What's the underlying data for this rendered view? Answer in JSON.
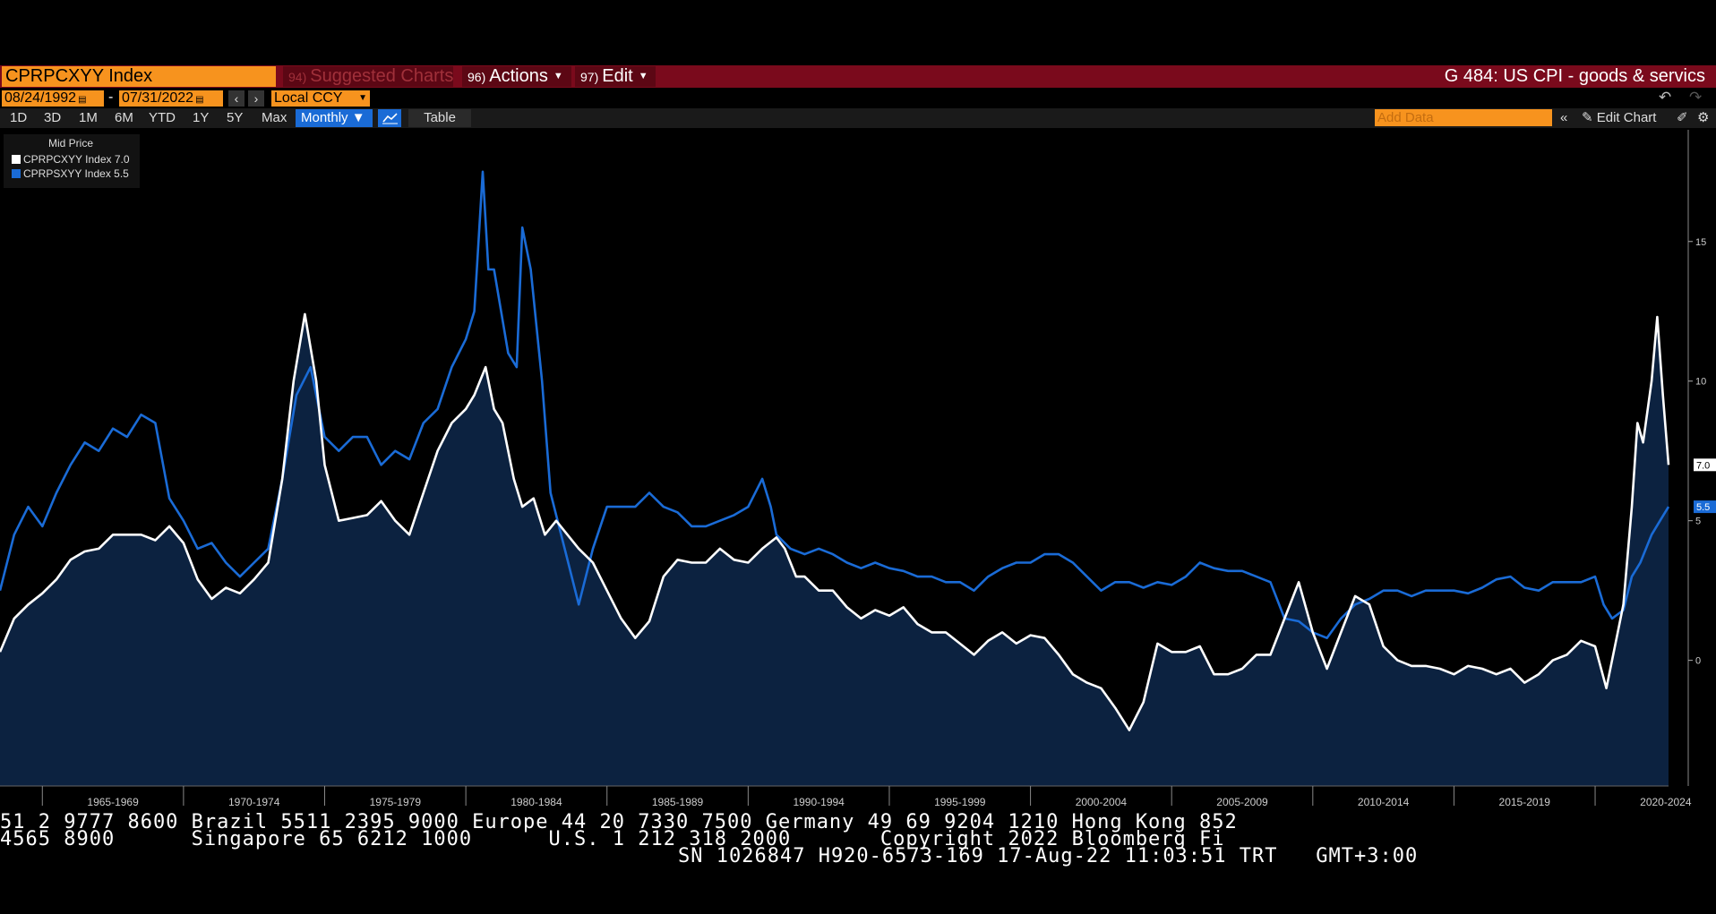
{
  "header": {
    "ticker": "CPRPCXYY Index",
    "suggested_num": "94)",
    "suggested_label": "Suggested Charts",
    "actions_num": "96)",
    "actions_label": "Actions",
    "edit_num": "97)",
    "edit_label": "Edit",
    "chart_name": "G 484: US CPI - goods & servics"
  },
  "dates": {
    "start": "08/24/1992",
    "end": "07/31/2022",
    "currency": "Local CCY"
  },
  "periods": [
    "1D",
    "3D",
    "1M",
    "6M",
    "YTD",
    "1Y",
    "5Y",
    "Max"
  ],
  "frequency": "Monthly",
  "table_label": "Table",
  "add_data_placeholder": "Add Data",
  "edit_chart_label": "Edit Chart",
  "legend": {
    "title": "Mid Price",
    "items": [
      {
        "label": "CPRPCXYY Index 7.0",
        "color": "#ffffff"
      },
      {
        "label": "CPRPSXYY Index 5.5",
        "color": "#1a6bd6"
      }
    ]
  },
  "chart_data": {
    "type": "line",
    "title": "",
    "ylim": [
      -4.5,
      19
    ],
    "yticks": [
      0,
      5,
      10,
      15
    ],
    "xticks": [
      "1965-1969",
      "1970-1974",
      "1975-1979",
      "1980-1984",
      "1985-1989",
      "1990-1994",
      "1995-1999",
      "2000-2004",
      "2005-2009",
      "2010-2014",
      "2015-2019",
      "2020-2024"
    ],
    "x_range": [
      1963.5,
      2022.6
    ],
    "grid": false,
    "legend_position": "top-left",
    "series": [
      {
        "name": "CPRPCXYY Index",
        "color": "#ffffff",
        "area_fill": "#0c2240",
        "last_value_label": "7.0",
        "points": [
          [
            1963.5,
            0.3
          ],
          [
            1964.0,
            1.5
          ],
          [
            1964.5,
            2.0
          ],
          [
            1965.0,
            2.4
          ],
          [
            1965.5,
            2.9
          ],
          [
            1966.0,
            3.6
          ],
          [
            1966.5,
            3.9
          ],
          [
            1967.0,
            4.0
          ],
          [
            1967.5,
            4.5
          ],
          [
            1968.0,
            4.5
          ],
          [
            1968.5,
            4.5
          ],
          [
            1969.0,
            4.3
          ],
          [
            1969.5,
            4.8
          ],
          [
            1970.0,
            4.2
          ],
          [
            1970.5,
            2.9
          ],
          [
            1971.0,
            2.2
          ],
          [
            1971.5,
            2.6
          ],
          [
            1972.0,
            2.4
          ],
          [
            1972.5,
            2.9
          ],
          [
            1973.0,
            3.5
          ],
          [
            1973.5,
            6.5
          ],
          [
            1973.9,
            10.0
          ],
          [
            1974.3,
            12.4
          ],
          [
            1974.7,
            10.0
          ],
          [
            1975.0,
            7.0
          ],
          [
            1975.5,
            5.0
          ],
          [
            1976.0,
            5.1
          ],
          [
            1976.5,
            5.2
          ],
          [
            1977.0,
            5.7
          ],
          [
            1977.5,
            5.0
          ],
          [
            1978.0,
            4.5
          ],
          [
            1978.5,
            6.0
          ],
          [
            1979.0,
            7.5
          ],
          [
            1979.5,
            8.5
          ],
          [
            1980.0,
            9.0
          ],
          [
            1980.3,
            9.5
          ],
          [
            1980.7,
            10.5
          ],
          [
            1981.0,
            9.0
          ],
          [
            1981.3,
            8.5
          ],
          [
            1981.7,
            6.5
          ],
          [
            1982.0,
            5.5
          ],
          [
            1982.4,
            5.8
          ],
          [
            1982.8,
            4.5
          ],
          [
            1983.2,
            5.0
          ],
          [
            1983.6,
            4.5
          ],
          [
            1984.0,
            4.0
          ],
          [
            1984.5,
            3.5
          ],
          [
            1985.0,
            2.5
          ],
          [
            1985.5,
            1.5
          ],
          [
            1986.0,
            0.8
          ],
          [
            1986.5,
            1.4
          ],
          [
            1987.0,
            3.0
          ],
          [
            1987.5,
            3.6
          ],
          [
            1988.0,
            3.5
          ],
          [
            1988.5,
            3.5
          ],
          [
            1989.0,
            4.0
          ],
          [
            1989.5,
            3.6
          ],
          [
            1990.0,
            3.5
          ],
          [
            1990.5,
            4.0
          ],
          [
            1991.0,
            4.4
          ],
          [
            1991.3,
            4.0
          ],
          [
            1991.7,
            3.0
          ],
          [
            1992.0,
            3.0
          ],
          [
            1992.5,
            2.5
          ],
          [
            1993.0,
            2.5
          ],
          [
            1993.5,
            1.9
          ],
          [
            1994.0,
            1.5
          ],
          [
            1994.5,
            1.8
          ],
          [
            1995.0,
            1.6
          ],
          [
            1995.5,
            1.9
          ],
          [
            1996.0,
            1.3
          ],
          [
            1996.5,
            1.0
          ],
          [
            1997.0,
            1.0
          ],
          [
            1997.5,
            0.6
          ],
          [
            1998.0,
            0.2
          ],
          [
            1998.5,
            0.7
          ],
          [
            1999.0,
            1.0
          ],
          [
            1999.5,
            0.6
          ],
          [
            2000.0,
            0.9
          ],
          [
            2000.5,
            0.8
          ],
          [
            2001.0,
            0.2
          ],
          [
            2001.5,
            -0.5
          ],
          [
            2002.0,
            -0.8
          ],
          [
            2002.5,
            -1.0
          ],
          [
            2003.0,
            -1.7
          ],
          [
            2003.5,
            -2.5
          ],
          [
            2004.0,
            -1.5
          ],
          [
            2004.5,
            0.6
          ],
          [
            2005.0,
            0.3
          ],
          [
            2005.5,
            0.3
          ],
          [
            2006.0,
            0.5
          ],
          [
            2006.5,
            -0.5
          ],
          [
            2007.0,
            -0.5
          ],
          [
            2007.5,
            -0.3
          ],
          [
            2008.0,
            0.2
          ],
          [
            2008.5,
            0.2
          ],
          [
            2009.0,
            1.5
          ],
          [
            2009.5,
            2.8
          ],
          [
            2010.0,
            1.0
          ],
          [
            2010.5,
            -0.3
          ],
          [
            2011.0,
            1.0
          ],
          [
            2011.5,
            2.3
          ],
          [
            2012.0,
            2.0
          ],
          [
            2012.5,
            0.5
          ],
          [
            2013.0,
            0.0
          ],
          [
            2013.5,
            -0.2
          ],
          [
            2014.0,
            -0.2
          ],
          [
            2014.5,
            -0.3
          ],
          [
            2015.0,
            -0.5
          ],
          [
            2015.5,
            -0.2
          ],
          [
            2016.0,
            -0.3
          ],
          [
            2016.5,
            -0.5
          ],
          [
            2017.0,
            -0.3
          ],
          [
            2017.5,
            -0.8
          ],
          [
            2018.0,
            -0.5
          ],
          [
            2018.5,
            0.0
          ],
          [
            2019.0,
            0.2
          ],
          [
            2019.5,
            0.7
          ],
          [
            2020.0,
            0.5
          ],
          [
            2020.4,
            -1.0
          ],
          [
            2020.8,
            1.0
          ],
          [
            2021.0,
            2.0
          ],
          [
            2021.3,
            5.5
          ],
          [
            2021.5,
            8.5
          ],
          [
            2021.7,
            7.8
          ],
          [
            2022.0,
            10.0
          ],
          [
            2022.2,
            12.3
          ],
          [
            2022.4,
            9.5
          ],
          [
            2022.6,
            7.0
          ]
        ]
      },
      {
        "name": "CPRPSXYY Index",
        "color": "#1a6bd6",
        "last_value_label": "5.5",
        "points": [
          [
            1963.5,
            2.5
          ],
          [
            1964.0,
            4.5
          ],
          [
            1964.5,
            5.5
          ],
          [
            1965.0,
            4.8
          ],
          [
            1965.5,
            6.0
          ],
          [
            1966.0,
            7.0
          ],
          [
            1966.5,
            7.8
          ],
          [
            1967.0,
            7.5
          ],
          [
            1967.5,
            8.3
          ],
          [
            1968.0,
            8.0
          ],
          [
            1968.5,
            8.8
          ],
          [
            1969.0,
            8.5
          ],
          [
            1969.5,
            5.8
          ],
          [
            1970.0,
            5.0
          ],
          [
            1970.5,
            4.0
          ],
          [
            1971.0,
            4.2
          ],
          [
            1971.5,
            3.5
          ],
          [
            1972.0,
            3.0
          ],
          [
            1972.5,
            3.5
          ],
          [
            1973.0,
            4.0
          ],
          [
            1973.5,
            6.5
          ],
          [
            1974.0,
            9.5
          ],
          [
            1974.5,
            10.5
          ],
          [
            1975.0,
            8.0
          ],
          [
            1975.5,
            7.5
          ],
          [
            1976.0,
            8.0
          ],
          [
            1976.5,
            8.0
          ],
          [
            1977.0,
            7.0
          ],
          [
            1977.5,
            7.5
          ],
          [
            1978.0,
            7.2
          ],
          [
            1978.5,
            8.5
          ],
          [
            1979.0,
            9.0
          ],
          [
            1979.5,
            10.5
          ],
          [
            1980.0,
            11.5
          ],
          [
            1980.3,
            12.5
          ],
          [
            1980.6,
            17.5
          ],
          [
            1980.8,
            14.0
          ],
          [
            1981.0,
            14.0
          ],
          [
            1981.5,
            11.0
          ],
          [
            1981.8,
            10.5
          ],
          [
            1982.0,
            15.5
          ],
          [
            1982.3,
            14.0
          ],
          [
            1982.7,
            10.0
          ],
          [
            1983.0,
            6.0
          ],
          [
            1983.5,
            4.0
          ],
          [
            1984.0,
            2.0
          ],
          [
            1984.5,
            4.0
          ],
          [
            1985.0,
            5.5
          ],
          [
            1985.5,
            5.5
          ],
          [
            1986.0,
            5.5
          ],
          [
            1986.5,
            6.0
          ],
          [
            1987.0,
            5.5
          ],
          [
            1987.5,
            5.3
          ],
          [
            1988.0,
            4.8
          ],
          [
            1988.5,
            4.8
          ],
          [
            1989.0,
            5.0
          ],
          [
            1989.5,
            5.2
          ],
          [
            1990.0,
            5.5
          ],
          [
            1990.5,
            6.5
          ],
          [
            1990.8,
            5.5
          ],
          [
            1991.0,
            4.5
          ],
          [
            1991.5,
            4.0
          ],
          [
            1992.0,
            3.8
          ],
          [
            1992.5,
            4.0
          ],
          [
            1993.0,
            3.8
          ],
          [
            1993.5,
            3.5
          ],
          [
            1994.0,
            3.3
          ],
          [
            1994.5,
            3.5
          ],
          [
            1995.0,
            3.3
          ],
          [
            1995.5,
            3.2
          ],
          [
            1996.0,
            3.0
          ],
          [
            1996.5,
            3.0
          ],
          [
            1997.0,
            2.8
          ],
          [
            1997.5,
            2.8
          ],
          [
            1998.0,
            2.5
          ],
          [
            1998.5,
            3.0
          ],
          [
            1999.0,
            3.3
          ],
          [
            1999.5,
            3.5
          ],
          [
            2000.0,
            3.5
          ],
          [
            2000.5,
            3.8
          ],
          [
            2001.0,
            3.8
          ],
          [
            2001.5,
            3.5
          ],
          [
            2002.0,
            3.0
          ],
          [
            2002.5,
            2.5
          ],
          [
            2003.0,
            2.8
          ],
          [
            2003.5,
            2.8
          ],
          [
            2004.0,
            2.6
          ],
          [
            2004.5,
            2.8
          ],
          [
            2005.0,
            2.7
          ],
          [
            2005.5,
            3.0
          ],
          [
            2006.0,
            3.5
          ],
          [
            2006.5,
            3.3
          ],
          [
            2007.0,
            3.2
          ],
          [
            2007.5,
            3.2
          ],
          [
            2008.0,
            3.0
          ],
          [
            2008.5,
            2.8
          ],
          [
            2009.0,
            1.5
          ],
          [
            2009.5,
            1.4
          ],
          [
            2010.0,
            1.0
          ],
          [
            2010.5,
            0.8
          ],
          [
            2011.0,
            1.5
          ],
          [
            2011.5,
            2.0
          ],
          [
            2012.0,
            2.2
          ],
          [
            2012.5,
            2.5
          ],
          [
            2013.0,
            2.5
          ],
          [
            2013.5,
            2.3
          ],
          [
            2014.0,
            2.5
          ],
          [
            2014.5,
            2.5
          ],
          [
            2015.0,
            2.5
          ],
          [
            2015.5,
            2.4
          ],
          [
            2016.0,
            2.6
          ],
          [
            2016.5,
            2.9
          ],
          [
            2017.0,
            3.0
          ],
          [
            2017.5,
            2.6
          ],
          [
            2018.0,
            2.5
          ],
          [
            2018.5,
            2.8
          ],
          [
            2019.0,
            2.8
          ],
          [
            2019.5,
            2.8
          ],
          [
            2020.0,
            3.0
          ],
          [
            2020.3,
            2.0
          ],
          [
            2020.6,
            1.5
          ],
          [
            2021.0,
            1.8
          ],
          [
            2021.3,
            3.0
          ],
          [
            2021.6,
            3.5
          ],
          [
            2022.0,
            4.5
          ],
          [
            2022.3,
            5.0
          ],
          [
            2022.6,
            5.5
          ]
        ]
      }
    ]
  },
  "footer": {
    "line1": "51 2 9777 8600 Brazil 5511 2395 9000 Europe 44 20 7330 7500 Germany 49 69 9204 1210 Hong Kong 852",
    "line2": "4565 8900      Singapore 65 6212 1000      U.S. 1 212 318 2000       Copyright 2022 Bloomberg Fi",
    "line3": "SN 1026847 H920-6573-169 17-Aug-22 11:03:51 TRT   GMT+3:00"
  }
}
